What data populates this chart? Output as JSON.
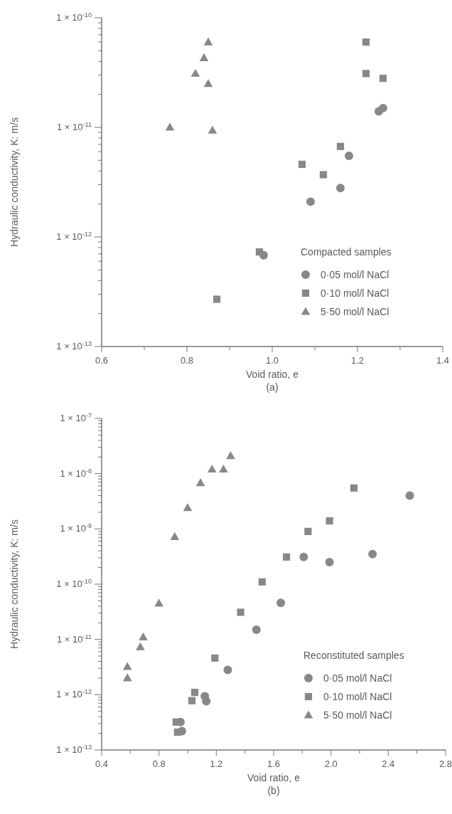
{
  "chart_data": [
    {
      "type": "scatter",
      "xlabel": "Void ratio, e",
      "ylabel": "Hydraulic conductivity, K: m/s",
      "annotations": [
        "(a)"
      ],
      "legend_title": "Compacted samples",
      "legend": "bottom right",
      "log": "y",
      "xlim": [
        0.6,
        1.4
      ],
      "ylim": [
        1e-13,
        1e-10
      ],
      "xticks": [
        0.6,
        {
          "value": 0.7,
          "label": null
        },
        0.8,
        {
          "value": 0.9,
          "label": null
        },
        {
          "value": 1.0,
          "label": "1.0"
        },
        {
          "value": 1.1,
          "label": null
        },
        1.2,
        {
          "value": 1.3,
          "label": null
        },
        1.4
      ],
      "yticks": [
        {
          "value": 1e-13,
          "label": "1 × 10$^{-13}$"
        },
        {
          "value": 2e-13,
          "label": null
        },
        {
          "value": 3e-13,
          "label": null
        },
        {
          "value": 4e-13,
          "label": null
        },
        {
          "value": 5e-13,
          "label": null
        },
        {
          "value": 6e-13,
          "label": null
        },
        {
          "value": 7e-13,
          "label": null
        },
        {
          "value": 8e-13,
          "label": null
        },
        {
          "value": 9e-13,
          "label": null
        },
        {
          "value": 1e-12,
          "label": "1 × 10$^{-12}$"
        },
        {
          "value": 2e-12,
          "label": null
        },
        {
          "value": 3e-12,
          "label": null
        },
        {
          "value": 4e-12,
          "label": null
        },
        {
          "value": 5e-12,
          "label": null
        },
        {
          "value": 6e-12,
          "label": null
        },
        {
          "value": 7e-12,
          "label": null
        },
        {
          "value": 8e-12,
          "label": null
        },
        {
          "value": 9e-12,
          "label": null
        },
        {
          "value": 1e-11,
          "label": "1 × 10$^{-11}$"
        },
        {
          "value": 2e-11,
          "label": null
        },
        {
          "value": 3e-11,
          "label": null
        },
        {
          "value": 4e-11,
          "label": null
        },
        {
          "value": 5e-11,
          "label": null
        },
        {
          "value": 6e-11,
          "label": null
        },
        {
          "value": 7e-11,
          "label": null
        },
        {
          "value": 8e-11,
          "label": null
        },
        {
          "value": 9e-11,
          "label": null
        },
        {
          "value": 1e-10,
          "label": "1 × 10$^{-10}$"
        }
      ],
      "series": [
        {
          "name": "0·05 mol/l NaCl",
          "color": "#888888",
          "marker": "circle",
          "x": [
            1.25,
            1.26,
            1.18,
            1.16,
            1.09,
            0.98
          ],
          "values": [
            1.4e-11,
            1.5e-11,
            5.5e-12,
            2.8e-12,
            2.1e-12,
            6.8e-13
          ]
        },
        {
          "name": "0·10 mol/l NaCl",
          "color": "#888888",
          "marker": "square",
          "x": [
            1.22,
            1.22,
            1.26,
            1.16,
            1.07,
            1.12,
            0.97,
            0.87
          ],
          "values": [
            6e-11,
            3.1e-11,
            2.8e-11,
            6.7e-12,
            4.6e-12,
            3.7e-12,
            7.3e-13,
            2.7e-13
          ]
        },
        {
          "name": "5·50 mol/l NaCl",
          "color": "#888888",
          "marker": "triangle",
          "x": [
            0.85,
            0.84,
            0.82,
            0.85,
            0.76,
            0.86
          ],
          "values": [
            6e-11,
            4.3e-11,
            3.1e-11,
            2.5e-11,
            1e-11,
            9.4e-12
          ]
        }
      ]
    },
    {
      "type": "scatter",
      "xlabel": "Void ratio, e",
      "ylabel": "Hydraulic conductivity, K: m/s",
      "annotations": [
        "(b)"
      ],
      "legend_title": "Reconstituted samples",
      "legend": "bottom right",
      "log": "y",
      "xlim": [
        0.4,
        2.8
      ],
      "ylim": [
        1e-13,
        1e-07
      ],
      "xticks": [
        0.4,
        {
          "value": 0.6,
          "label": null
        },
        0.8,
        {
          "value": 1.0,
          "label": null
        },
        1.2,
        {
          "value": 1.4,
          "label": null
        },
        1.6,
        {
          "value": 1.8,
          "label": null
        },
        {
          "value": 2.0,
          "label": "2.0"
        },
        {
          "value": 2.2,
          "label": null
        },
        2.4,
        {
          "value": 2.6,
          "label": null
        },
        2.8
      ],
      "yticks": [
        {
          "value": 1e-13,
          "label": "1 × 10$^{-13}$"
        },
        {
          "value": 2e-13,
          "label": null
        },
        {
          "value": 3e-13,
          "label": null
        },
        {
          "value": 4e-13,
          "label": null
        },
        {
          "value": 5e-13,
          "label": null
        },
        {
          "value": 6e-13,
          "label": null
        },
        {
          "value": 7e-13,
          "label": null
        },
        {
          "value": 8e-13,
          "label": null
        },
        {
          "value": 9e-13,
          "label": null
        },
        {
          "value": 1e-12,
          "label": "1 × 10$^{-12}$"
        },
        {
          "value": 2e-12,
          "label": null
        },
        {
          "value": 3e-12,
          "label": null
        },
        {
          "value": 4e-12,
          "label": null
        },
        {
          "value": 5e-12,
          "label": null
        },
        {
          "value": 6e-12,
          "label": null
        },
        {
          "value": 7e-12,
          "label": null
        },
        {
          "value": 8e-12,
          "label": null
        },
        {
          "value": 9e-12,
          "label": null
        },
        {
          "value": 1e-11,
          "label": "1 × 10$^{-11}$"
        },
        {
          "value": 2e-11,
          "label": null
        },
        {
          "value": 3e-11,
          "label": null
        },
        {
          "value": 4e-11,
          "label": null
        },
        {
          "value": 5e-11,
          "label": null
        },
        {
          "value": 6e-11,
          "label": null
        },
        {
          "value": 7e-11,
          "label": null
        },
        {
          "value": 8e-11,
          "label": null
        },
        {
          "value": 9e-11,
          "label": null
        },
        {
          "value": 1e-10,
          "label": "1 × 10$^{-10}$"
        },
        {
          "value": 2e-10,
          "label": null
        },
        {
          "value": 3e-10,
          "label": null
        },
        {
          "value": 4e-10,
          "label": null
        },
        {
          "value": 5e-10,
          "label": null
        },
        {
          "value": 6e-10,
          "label": null
        },
        {
          "value": 7e-10,
          "label": null
        },
        {
          "value": 8e-10,
          "label": null
        },
        {
          "value": 9e-10,
          "label": null
        },
        {
          "value": 1e-09,
          "label": "1 × 10$^{-9}$"
        },
        {
          "value": 2e-09,
          "label": null
        },
        {
          "value": 3e-09,
          "label": null
        },
        {
          "value": 4e-09,
          "label": null
        },
        {
          "value": 5e-09,
          "label": null
        },
        {
          "value": 6e-09,
          "label": null
        },
        {
          "value": 7e-09,
          "label": null
        },
        {
          "value": 8e-09,
          "label": null
        },
        {
          "value": 9e-09,
          "label": null
        },
        {
          "value": 1e-08,
          "label": "1 × 10$^{-8}$"
        },
        {
          "value": 2e-08,
          "label": null
        },
        {
          "value": 3e-08,
          "label": null
        },
        {
          "value": 4e-08,
          "label": null
        },
        {
          "value": 5e-08,
          "label": null
        },
        {
          "value": 6e-08,
          "label": null
        },
        {
          "value": 7e-08,
          "label": null
        },
        {
          "value": 8e-08,
          "label": null
        },
        {
          "value": 9e-08,
          "label": null
        },
        {
          "value": 1e-07,
          "label": "1 × 10$^{-7}$"
        }
      ],
      "series": [
        {
          "name": "0·05 mol/l NaCl",
          "color": "#888888",
          "marker": "circle",
          "x": [
            2.55,
            2.29,
            1.99,
            1.81,
            1.65,
            1.48,
            1.28,
            1.12,
            1.13,
            0.95,
            0.96
          ],
          "values": [
            4e-09,
            3.5e-10,
            2.5e-10,
            3.1e-10,
            4.6e-11,
            1.5e-11,
            2.8e-12,
            9.4e-13,
            7.6e-13,
            3.2e-13,
            2.2e-13
          ]
        },
        {
          "name": "0·10 mol/l NaCl",
          "color": "#888888",
          "marker": "square",
          "x": [
            2.16,
            1.99,
            1.84,
            1.69,
            1.52,
            1.37,
            1.19,
            1.05,
            1.03,
            0.92,
            0.93
          ],
          "values": [
            5.5e-09,
            1.4e-09,
            9e-10,
            3.1e-10,
            1.1e-10,
            3.1e-11,
            4.6e-12,
            1.1e-12,
            7.8e-13,
            3.2e-13,
            2.1e-13
          ]
        },
        {
          "name": "5·50 mol/l NaCl",
          "color": "#888888",
          "marker": "triangle",
          "x": [
            1.3,
            1.25,
            1.17,
            1.09,
            1.0,
            0.91,
            0.8,
            0.69,
            0.67,
            0.58,
            0.58
          ],
          "values": [
            2.1e-08,
            1.2e-08,
            1.2e-08,
            6.8e-09,
            2.4e-09,
            7.2e-10,
            4.5e-11,
            1.1e-11,
            7.3e-12,
            3.2e-12,
            2e-12
          ]
        }
      ]
    }
  ]
}
